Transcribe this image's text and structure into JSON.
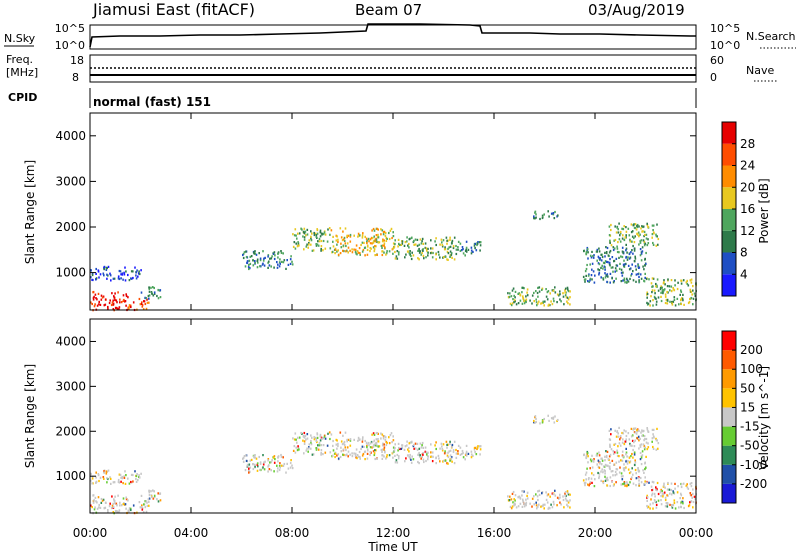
{
  "header": {
    "station": "Jiamusi East (fitACF)",
    "beam": "Beam 07",
    "date": "03/Aug/2019"
  },
  "noise_panel": {
    "left_label": "N.Sky",
    "right_label": "N.Search",
    "left_ticks": [
      "10^5",
      "10^0"
    ],
    "right_ticks": [
      "10^5",
      "10^0"
    ]
  },
  "freq_panel": {
    "left_label_line1": "Freq.",
    "left_label_line2": "[MHz]",
    "right_label": "Nave",
    "left_ticks": [
      "18",
      "8"
    ],
    "right_ticks": [
      "60",
      "0"
    ]
  },
  "cpid_panel": {
    "label": "CPID",
    "value": "normal (fast) 151"
  },
  "colors": {
    "power": [
      "#1a1aff",
      "#1f4fc4",
      "#2e7a4a",
      "#4fa65e",
      "#e8c820",
      "#ff8c00",
      "#ff4d00",
      "#e60000"
    ],
    "velocity": [
      "#ff0000",
      "#ff5a00",
      "#ff9a00",
      "#ffc300",
      "#c8c8c8",
      "#66cc33",
      "#2e8b57",
      "#2050a8",
      "#1a1ad6"
    ]
  },
  "chart_data": [
    {
      "type": "heatmap",
      "name": "power",
      "ylabel": "Slant Range [km]",
      "ylim": [
        180,
        4500
      ],
      "yticks": [
        "4000",
        "3000",
        "2000",
        "1000"
      ],
      "colorbar_label": "Power [dB]",
      "colorbar_ticks": [
        "28",
        "24",
        "20",
        "16",
        "12",
        "8",
        "4"
      ],
      "xlim": [
        "00:00",
        "24:00"
      ],
      "echo_regions": [
        {
          "t0": 0.0,
          "t1": 1.5,
          "r0": 200,
          "r1": 600,
          "level": 7
        },
        {
          "t0": 1.5,
          "t1": 2.3,
          "r0": 200,
          "r1": 450,
          "level": 6
        },
        {
          "t0": 0.0,
          "t1": 2.0,
          "r0": 850,
          "r1": 1150,
          "level": 1
        },
        {
          "t0": 2.0,
          "t1": 2.8,
          "r0": 450,
          "r1": 750,
          "level": 2
        },
        {
          "t0": 6.0,
          "t1": 8.0,
          "r0": 1100,
          "r1": 1500,
          "level": 2
        },
        {
          "t0": 8.0,
          "t1": 9.5,
          "r0": 1500,
          "r1": 2000,
          "level": 3
        },
        {
          "t0": 9.5,
          "t1": 12.0,
          "r0": 1400,
          "r1": 2000,
          "level": 4
        },
        {
          "t0": 12.0,
          "t1": 14.5,
          "r0": 1300,
          "r1": 1800,
          "level": 3
        },
        {
          "t0": 14.5,
          "t1": 15.5,
          "r0": 1400,
          "r1": 1700,
          "level": 2
        },
        {
          "t0": 16.5,
          "t1": 19.0,
          "r0": 300,
          "r1": 700,
          "level": 3
        },
        {
          "t0": 17.5,
          "t1": 18.5,
          "r0": 2200,
          "r1": 2400,
          "level": 2
        },
        {
          "t0": 19.5,
          "t1": 22.0,
          "r0": 800,
          "r1": 1600,
          "level": 2
        },
        {
          "t0": 20.5,
          "t1": 22.5,
          "r0": 1600,
          "r1": 2100,
          "level": 3
        },
        {
          "t0": 22.0,
          "t1": 24.0,
          "r0": 300,
          "r1": 900,
          "level": 3
        }
      ]
    },
    {
      "type": "heatmap",
      "name": "velocity",
      "ylabel": "Slant Range [km]",
      "ylim": [
        180,
        4500
      ],
      "yticks": [
        "4000",
        "3000",
        "2000",
        "1000"
      ],
      "colorbar_label": "Velocity [m s^-1]",
      "colorbar_ticks": [
        "200",
        "100",
        "50",
        "15",
        "-15",
        "-50",
        "-100",
        "-200"
      ],
      "xlabel": "Time UT",
      "xticks": [
        "00:00",
        "04:00",
        "08:00",
        "12:00",
        "16:00",
        "20:00",
        "00:00"
      ],
      "xlim": [
        "00:00",
        "24:00"
      ]
    }
  ]
}
